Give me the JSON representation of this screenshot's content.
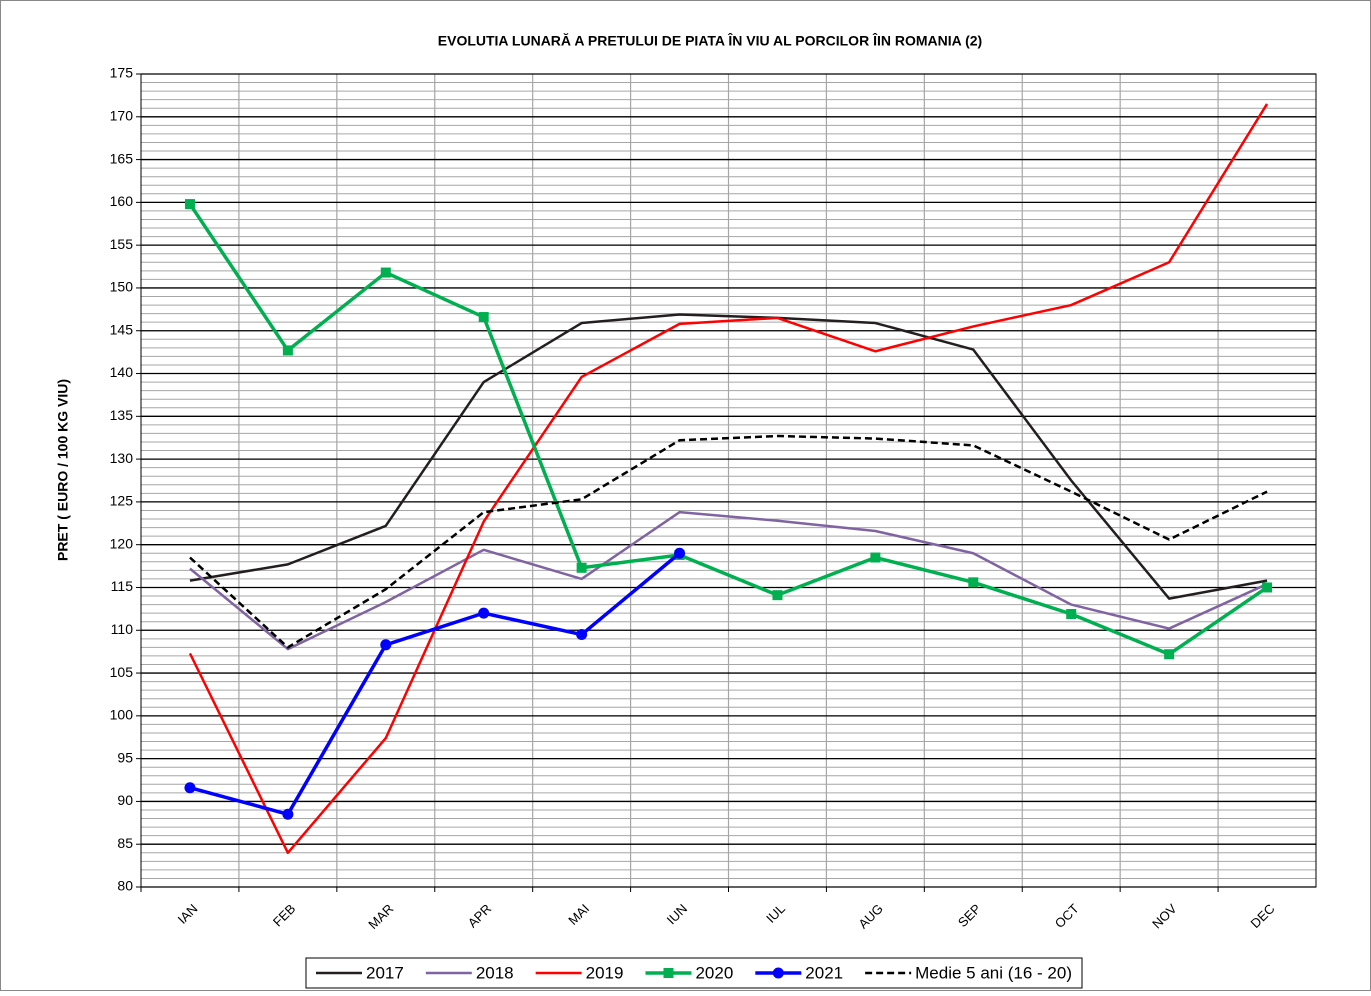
{
  "chart_data": {
    "type": "line",
    "title": "EVOLUTIA LUNARĂ  A PRETULUI  DE PIATA ÎN VIU AL PORCILOR ÎIN ROMANIA (2)",
    "y_label": "PRET ( EURO / 100 KG VIU)",
    "categories": [
      "IAN",
      "FEB",
      "MAR",
      "APR",
      "MAI",
      "IUN",
      "IUL",
      "AUG",
      "SEP",
      "OCT",
      "NOV",
      "DEC"
    ],
    "ylim": [
      80,
      175
    ],
    "yticks": [
      80,
      85,
      90,
      95,
      100,
      105,
      110,
      115,
      120,
      125,
      130,
      135,
      140,
      145,
      150,
      155,
      160,
      165,
      170,
      175
    ],
    "grid": true,
    "minor_grid_step": 1,
    "legend": "bottom",
    "series": [
      {
        "name": "2017",
        "color": "#231f20",
        "width": 2.5,
        "values": [
          115.8,
          117.7,
          122.2,
          139,
          145.9,
          146.9,
          146.5,
          145.9,
          142.8,
          127.5,
          113.7,
          115.8
        ]
      },
      {
        "name": "2018",
        "color": "#8064a2",
        "width": 2.5,
        "values": [
          117.2,
          107.8,
          113.3,
          119.4,
          116,
          123.8,
          122.8,
          121.6,
          119,
          113,
          110.2,
          115.4
        ]
      },
      {
        "name": "2019",
        "color": "#ff0000",
        "width": 2.5,
        "values": [
          107.3,
          84,
          97.4,
          122.7,
          139.6,
          145.8,
          146.5,
          142.6,
          145.5,
          148,
          153,
          171.5
        ]
      },
      {
        "name": "2020",
        "color": "#00b050",
        "width": 3.5,
        "marker": "square",
        "values": [
          159.8,
          142.7,
          151.8,
          146.6,
          117.3,
          118.8,
          114.1,
          118.5,
          115.6,
          111.9,
          107.2,
          115
        ]
      },
      {
        "name": "2021",
        "color": "#0000ff",
        "width": 3.5,
        "marker": "circle",
        "values": [
          91.6,
          88.5,
          108.3,
          112,
          109.5,
          119,
          null,
          null,
          null,
          null,
          null,
          null
        ]
      },
      {
        "name": "Medie 5 ani (16 - 20)",
        "color": "#000000",
        "width": 2.5,
        "dash": true,
        "values": [
          118.5,
          108,
          114.8,
          123.8,
          125.3,
          132.2,
          132.7,
          132.4,
          131.6,
          126.2,
          120.6,
          126.2
        ]
      }
    ]
  }
}
